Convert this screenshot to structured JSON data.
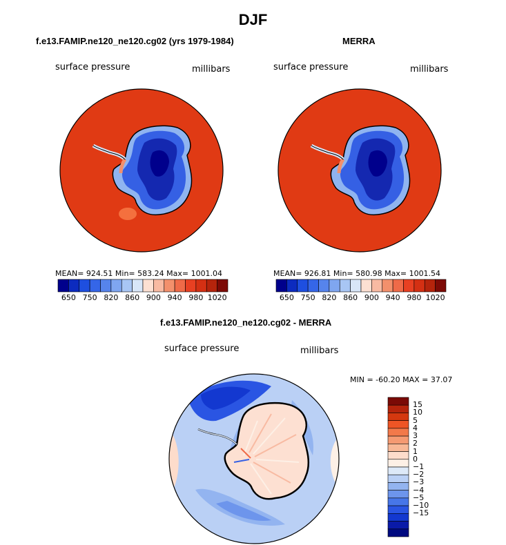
{
  "title": "DJF",
  "left_panel": {
    "title": "f.e13.FAMIP.ne120_ne120.cg02 (yrs 1979-1984)",
    "variable": "surface pressure",
    "units": "millibars",
    "stats": "MEAN= 924.51   Min= 583.24   Max= 1001.04"
  },
  "right_panel": {
    "title": "MERRA",
    "variable": "surface pressure",
    "units": "millibars",
    "stats": "MEAN= 926.81   Min= 580.98   Max= 1001.54"
  },
  "diff_panel": {
    "title": "f.e13.FAMIP.ne120_ne120.cg02 - MERRA",
    "variable": "surface pressure",
    "units": "millibars",
    "stats": "MIN = -60.20 MAX =  37.07"
  },
  "abs_colorbar": {
    "colors": [
      "#00008c",
      "#0c2bbf",
      "#1e4fe0",
      "#3566e8",
      "#5684ec",
      "#7fa6f0",
      "#a8c6f4",
      "#d8e6f8",
      "#fde0d2",
      "#f8baa2",
      "#f3906c",
      "#ef6a48",
      "#e84022",
      "#d43013",
      "#b5240c",
      "#7d0a06"
    ],
    "tick_labels": [
      "650",
      "750",
      "820",
      "860",
      "900",
      "940",
      "980",
      "1020"
    ]
  },
  "diff_colorbar": {
    "colors": [
      "#7a0a06",
      "#b5240c",
      "#d4380f",
      "#ee5525",
      "#f2794a",
      "#f59a72",
      "#f8b896",
      "#fddccb",
      "#fdf0e6",
      "#dde9f8",
      "#bad0f5",
      "#93b4f0",
      "#6d95ec",
      "#4776e8",
      "#2a55e3",
      "#1338d0",
      "#0a1aa8",
      "#000a80"
    ],
    "tick_labels": [
      "15",
      "10",
      "5",
      "4",
      "3",
      "2",
      "1",
      "0",
      "−1",
      "−2",
      "−3",
      "−4",
      "−5",
      "−10",
      "−15"
    ]
  }
}
